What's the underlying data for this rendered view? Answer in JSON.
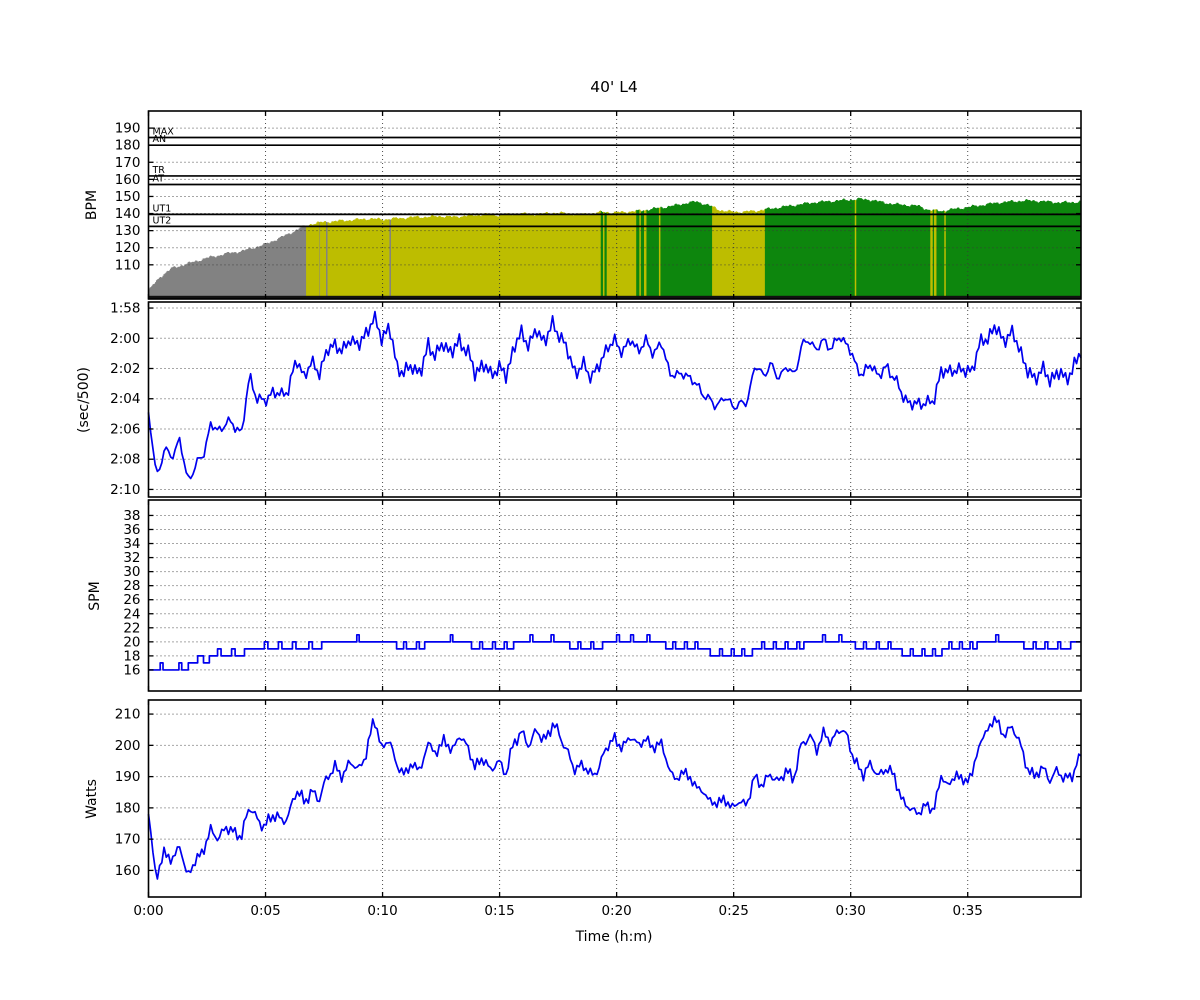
{
  "title": "40' L4",
  "xlabel": "Time (h:m)",
  "colors": {
    "line": "#0000ee",
    "zone_grey": "#828282",
    "zone_yellow": "#bdbd00",
    "zone_green": "#0d860d",
    "grid": "#3a3a3a",
    "zone_line": "#000000",
    "fill_base_edge": "#111111"
  },
  "x_axis": {
    "min": 0,
    "max": 39.84,
    "ticks": [
      0,
      5,
      10,
      15,
      20,
      25,
      30,
      35
    ],
    "tick_labels": [
      "0:00",
      "0:05",
      "0:10",
      "0:15",
      "0:20",
      "0:25",
      "0:30",
      "0:35"
    ]
  },
  "chart_data": [
    {
      "type": "area",
      "name": "heart-rate",
      "ylabel": "BPM",
      "ylim": [
        90,
        200
      ],
      "yticks": [
        110,
        120,
        130,
        140,
        150,
        160,
        170,
        180,
        190
      ],
      "ytick_labels": [
        "110",
        "120",
        "130",
        "140",
        "150",
        "160",
        "170",
        "180",
        "190"
      ],
      "zones": [
        {
          "label": "MAX",
          "bpm": 184.5
        },
        {
          "label": "AN",
          "bpm": 180
        },
        {
          "label": "TR",
          "bpm": 162
        },
        {
          "label": "AT",
          "bpm": 157
        },
        {
          "label": "UT1",
          "bpm": 139.5
        },
        {
          "label": "UT2",
          "bpm": 132.5
        }
      ],
      "x_start": 0,
      "x_end": 39.84,
      "values": [
        95,
        103,
        108,
        110,
        112,
        114,
        115.5,
        117,
        118,
        120,
        122,
        125,
        128,
        131.5,
        134,
        135,
        135.5,
        136,
        136.5,
        137,
        136.5,
        137,
        137.5,
        138,
        138,
        138.5,
        138,
        138.5,
        139,
        139.5,
        139,
        139.5,
        140,
        139.5,
        140,
        140.5,
        140,
        139.5,
        140,
        141,
        140.5,
        141,
        141.5,
        142.5,
        143.5,
        144.5,
        146,
        147,
        145,
        142,
        141,
        141,
        141.5,
        142.5,
        143.5,
        144.5,
        145.5,
        146.5,
        147,
        147.5,
        148,
        148.5,
        148,
        146.5,
        145.5,
        145,
        144.5,
        142,
        141.5,
        142.5,
        143.5,
        144.5,
        145.5,
        146.5,
        147,
        147.5,
        147.5,
        147,
        146.5,
        146.5,
        147
      ],
      "zone_segments": [
        {
          "to": 6.75,
          "color": "grey"
        },
        {
          "to": 7.28,
          "color": "yellow"
        },
        {
          "to": 7.34,
          "color": "grey"
        },
        {
          "to": 7.58,
          "color": "yellow"
        },
        {
          "to": 7.64,
          "color": "grey"
        },
        {
          "to": 10.28,
          "color": "yellow"
        },
        {
          "to": 10.34,
          "color": "grey"
        },
        {
          "to": 19.32,
          "color": "yellow"
        },
        {
          "to": 19.42,
          "color": "green"
        },
        {
          "to": 19.5,
          "color": "yellow"
        },
        {
          "to": 19.58,
          "color": "green"
        },
        {
          "to": 20.85,
          "color": "yellow"
        },
        {
          "to": 20.95,
          "color": "green"
        },
        {
          "to": 21.05,
          "color": "yellow"
        },
        {
          "to": 21.15,
          "color": "green"
        },
        {
          "to": 21.28,
          "color": "yellow"
        },
        {
          "to": 21.8,
          "color": "green"
        },
        {
          "to": 21.88,
          "color": "yellow"
        },
        {
          "to": 24.05,
          "color": "green"
        },
        {
          "to": 26.35,
          "color": "yellow"
        },
        {
          "to": 30.15,
          "color": "green"
        },
        {
          "to": 30.22,
          "color": "yellow"
        },
        {
          "to": 33.38,
          "color": "green"
        },
        {
          "to": 33.5,
          "color": "yellow"
        },
        {
          "to": 33.56,
          "color": "green"
        },
        {
          "to": 33.66,
          "color": "yellow"
        },
        {
          "to": 34.0,
          "color": "green"
        },
        {
          "to": 34.06,
          "color": "yellow"
        },
        {
          "to": 39.84,
          "color": "green"
        }
      ]
    },
    {
      "type": "line",
      "name": "pace",
      "ylabel": "(sec/500)",
      "inverted": true,
      "ylim": [
        117.6,
        130.5
      ],
      "yticks": [
        118,
        120,
        122,
        124,
        126,
        128,
        130
      ],
      "ytick_labels": [
        "1:58",
        "2:00",
        "2:02",
        "2:04",
        "2:06",
        "2:08",
        "2:10"
      ],
      "x_start": 0,
      "x_end": 39.84,
      "values": [
        124.9,
        129.2,
        127.4,
        127.9,
        126.6,
        129.5,
        128.4,
        127.9,
        125.6,
        126.3,
        125.4,
        125.9,
        126.1,
        122.6,
        123.9,
        124.3,
        123.4,
        123.9,
        123.3,
        121.5,
        122.4,
        121.7,
        122.2,
        120.9,
        120.3,
        121.0,
        119.9,
        120.6,
        119.6,
        118.7,
        119.9,
        119.3,
        121.9,
        122.3,
        121.8,
        122.4,
        120.4,
        121.2,
        120.3,
        121.0,
        120.2,
        120.8,
        122.3,
        121.7,
        122.4,
        121.9,
        122.5,
        120.6,
        119.7,
        120.4,
        119.5,
        120.2,
        119.1,
        119.8,
        121.0,
        122.3,
        121.8,
        122.5,
        121.9,
        120.5,
        120.3,
        120.8,
        120.2,
        120.7,
        120.3,
        120.9,
        120.4,
        122.1,
        122.6,
        122.2,
        122.9,
        123.3,
        124.1,
        124.4,
        124.0,
        124.3,
        124.5,
        124.2,
        121.9,
        122.4,
        121.8,
        122.6,
        121.9,
        122.5,
        120.6,
        120.1,
        120.7,
        120.2,
        120.6,
        119.9,
        120.4,
        121.9,
        122.3,
        121.8,
        122.4,
        122.0,
        122.5,
        123.9,
        124.2,
        124.5,
        124.1,
        124.4,
        122.0,
        122.4,
        121.9,
        122.3,
        122.0,
        120.4,
        119.9,
        119.3,
        120.1,
        119.7,
        120.4,
        122.2,
        122.6,
        122.1,
        122.7,
        122.3,
        122.6,
        122.1,
        120.8
      ]
    },
    {
      "type": "line",
      "name": "stroke-rate",
      "ylabel": "SPM",
      "ylim": [
        13,
        40.2
      ],
      "yticks": [
        16,
        18,
        20,
        22,
        24,
        26,
        28,
        30,
        32,
        34,
        36,
        38
      ],
      "ytick_labels": [
        "16",
        "18",
        "20",
        "22",
        "24",
        "26",
        "28",
        "30",
        "32",
        "34",
        "36",
        "38"
      ],
      "steps": [
        [
          0,
          16
        ],
        [
          0.5,
          17
        ],
        [
          0.62,
          16
        ],
        [
          1.3,
          17
        ],
        [
          1.42,
          16
        ],
        [
          1.7,
          17
        ],
        [
          2.1,
          18
        ],
        [
          2.35,
          17
        ],
        [
          2.6,
          18
        ],
        [
          2.95,
          19
        ],
        [
          3.1,
          18
        ],
        [
          3.55,
          19
        ],
        [
          3.7,
          18
        ],
        [
          4.1,
          19
        ],
        [
          4.95,
          20
        ],
        [
          5.1,
          19
        ],
        [
          5.55,
          20
        ],
        [
          5.7,
          19
        ],
        [
          6.15,
          20
        ],
        [
          6.3,
          19
        ],
        [
          6.85,
          20
        ],
        [
          7.0,
          19
        ],
        [
          7.4,
          20
        ],
        [
          8.9,
          21
        ],
        [
          9.0,
          20
        ],
        [
          10.6,
          19
        ],
        [
          10.9,
          20
        ],
        [
          11.02,
          19
        ],
        [
          11.45,
          20
        ],
        [
          11.57,
          19
        ],
        [
          11.8,
          20
        ],
        [
          12.9,
          21
        ],
        [
          13.0,
          20
        ],
        [
          13.8,
          19
        ],
        [
          14.15,
          20
        ],
        [
          14.27,
          19
        ],
        [
          14.7,
          20
        ],
        [
          14.82,
          19
        ],
        [
          15.2,
          20
        ],
        [
          15.32,
          19
        ],
        [
          15.6,
          20
        ],
        [
          16.3,
          21
        ],
        [
          16.42,
          20
        ],
        [
          17.2,
          21
        ],
        [
          17.32,
          20
        ],
        [
          18.0,
          19
        ],
        [
          18.35,
          20
        ],
        [
          18.47,
          19
        ],
        [
          18.9,
          20
        ],
        [
          19.02,
          19
        ],
        [
          19.4,
          20
        ],
        [
          20.0,
          21
        ],
        [
          20.12,
          20
        ],
        [
          20.6,
          21
        ],
        [
          20.72,
          20
        ],
        [
          21.3,
          21
        ],
        [
          21.42,
          20
        ],
        [
          22.1,
          19
        ],
        [
          22.4,
          20
        ],
        [
          22.52,
          19
        ],
        [
          22.9,
          20
        ],
        [
          23.02,
          19
        ],
        [
          23.35,
          20
        ],
        [
          23.47,
          19
        ],
        [
          24.0,
          18
        ],
        [
          24.4,
          19
        ],
        [
          24.52,
          18
        ],
        [
          24.9,
          19
        ],
        [
          25.02,
          18
        ],
        [
          25.35,
          19
        ],
        [
          25.47,
          18
        ],
        [
          25.8,
          19
        ],
        [
          26.2,
          20
        ],
        [
          26.32,
          19
        ],
        [
          26.7,
          20
        ],
        [
          26.82,
          19
        ],
        [
          27.2,
          20
        ],
        [
          27.32,
          19
        ],
        [
          27.7,
          20
        ],
        [
          27.82,
          19
        ],
        [
          28.0,
          20
        ],
        [
          28.8,
          21
        ],
        [
          28.92,
          20
        ],
        [
          29.5,
          21
        ],
        [
          29.62,
          20
        ],
        [
          30.2,
          19
        ],
        [
          30.55,
          20
        ],
        [
          30.67,
          19
        ],
        [
          31.1,
          20
        ],
        [
          31.22,
          19
        ],
        [
          31.6,
          20
        ],
        [
          31.72,
          19
        ],
        [
          32.2,
          18
        ],
        [
          32.55,
          19
        ],
        [
          32.67,
          18
        ],
        [
          33.05,
          19
        ],
        [
          33.17,
          18
        ],
        [
          33.5,
          19
        ],
        [
          33.62,
          18
        ],
        [
          33.9,
          19
        ],
        [
          34.2,
          20
        ],
        [
          34.32,
          19
        ],
        [
          34.65,
          20
        ],
        [
          34.77,
          19
        ],
        [
          35.1,
          20
        ],
        [
          35.22,
          19
        ],
        [
          35.4,
          20
        ],
        [
          36.2,
          21
        ],
        [
          36.32,
          20
        ],
        [
          37.4,
          19
        ],
        [
          37.8,
          20
        ],
        [
          37.92,
          19
        ],
        [
          38.3,
          20
        ],
        [
          38.42,
          19
        ],
        [
          38.85,
          20
        ],
        [
          38.97,
          19
        ],
        [
          39.4,
          20
        ],
        [
          39.84,
          20
        ]
      ]
    },
    {
      "type": "line",
      "name": "power",
      "ylabel": "Watts",
      "ylim": [
        151.5,
        214.5
      ],
      "yticks": [
        160,
        170,
        180,
        190,
        200,
        210
      ],
      "ytick_labels": [
        "160",
        "170",
        "180",
        "190",
        "200",
        "210"
      ],
      "x_start": 0,
      "x_end": 39.84,
      "values": [
        178,
        157,
        166,
        163,
        168,
        158,
        163,
        166,
        173,
        170,
        174,
        172,
        171,
        181,
        176,
        174,
        178,
        176,
        177,
        186,
        182,
        185,
        183,
        190,
        193,
        190,
        195,
        192,
        197,
        209,
        199,
        202,
        193,
        191,
        194,
        192,
        201,
        197,
        202,
        198,
        203,
        200,
        193,
        196,
        192,
        195,
        191,
        201,
        204,
        200,
        205,
        201,
        207,
        203,
        197,
        192,
        194,
        190,
        193,
        200,
        202,
        199,
        203,
        200,
        202,
        199,
        201,
        192,
        189,
        192,
        188,
        186,
        183,
        181,
        183,
        180,
        182,
        181,
        190,
        187,
        191,
        188,
        192,
        189,
        200,
        203,
        199,
        204,
        201,
        206,
        202,
        194,
        191,
        194,
        190,
        193,
        190,
        182,
        180,
        178,
        181,
        179,
        190,
        187,
        191,
        188,
        191,
        201,
        205,
        209,
        203,
        206,
        202,
        193,
        190,
        193,
        189,
        192,
        189,
        191,
        197
      ]
    }
  ]
}
